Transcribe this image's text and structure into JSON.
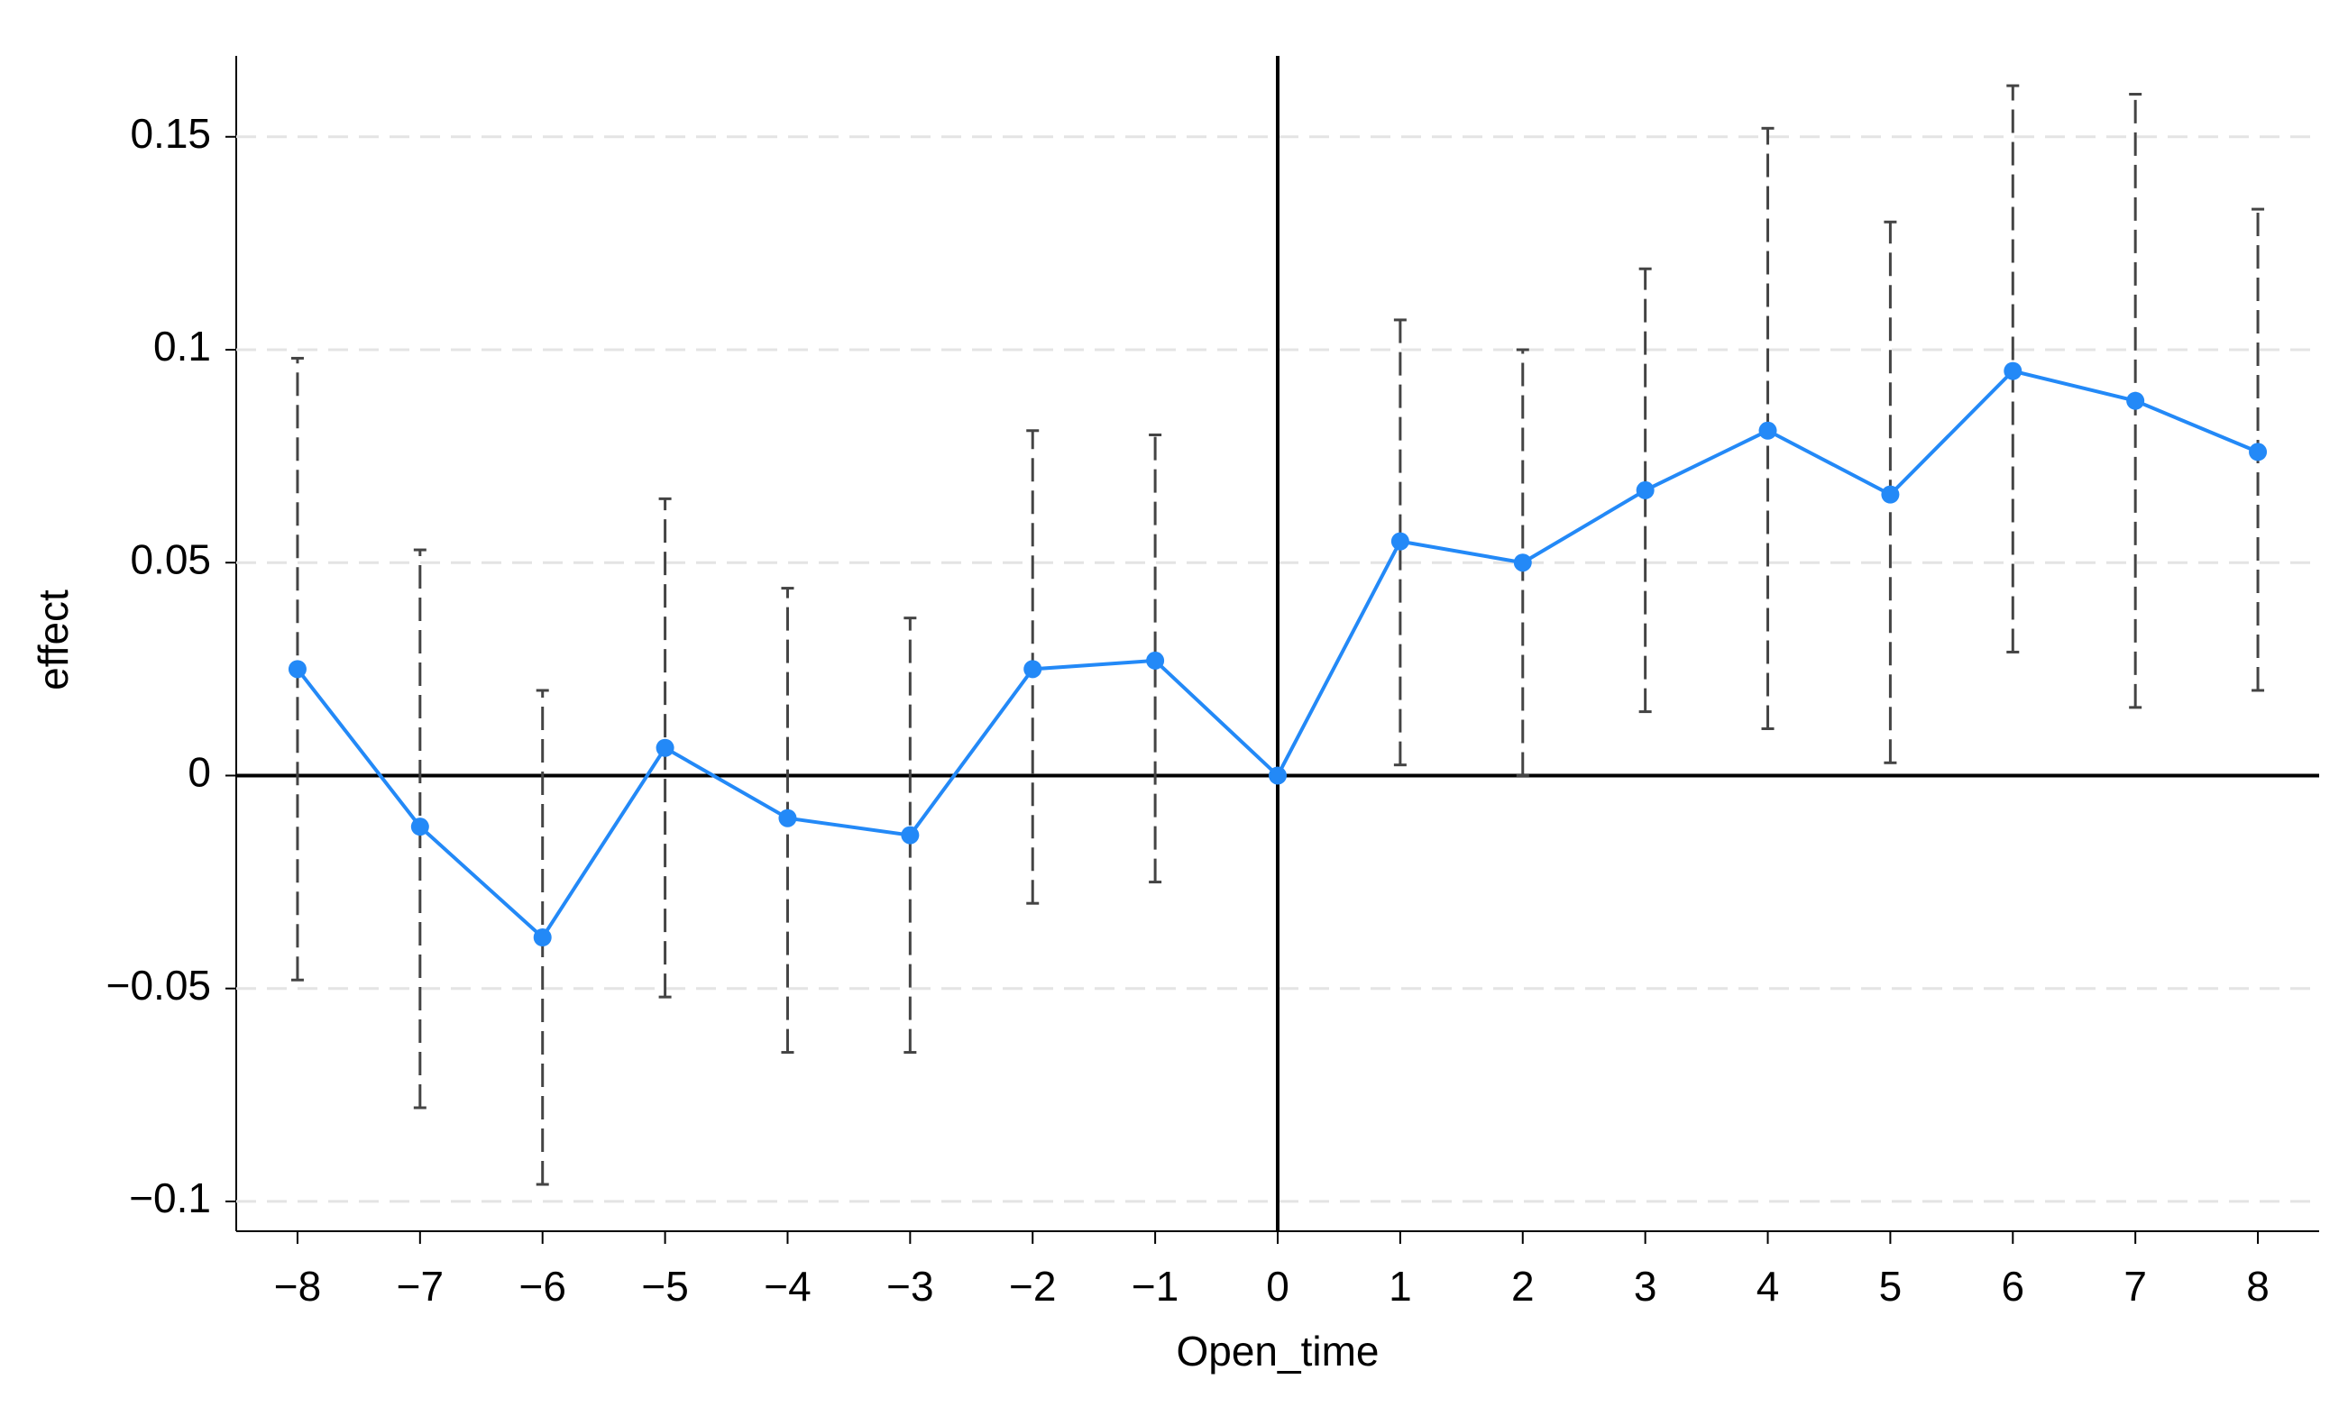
{
  "chart_data": {
    "type": "line",
    "x_label": "Open_time",
    "y_label": "effect",
    "x": [
      -8,
      -7,
      -6,
      -5,
      -4,
      -3,
      -2,
      -1,
      0,
      1,
      2,
      3,
      4,
      5,
      6,
      7,
      8
    ],
    "series": [
      {
        "color": "#2389f7",
        "values": [
          0.025,
          -0.012,
          -0.038,
          0.0065,
          -0.01,
          -0.014,
          0.025,
          0.027,
          0,
          0.055,
          0.05,
          0.067,
          0.081,
          0.066,
          0.095,
          0.088,
          0.076
        ],
        "ci_lower": [
          -0.048,
          -0.078,
          -0.096,
          -0.052,
          -0.065,
          -0.065,
          -0.03,
          -0.025,
          0,
          0.0025,
          0,
          0.015,
          0.011,
          0.003,
          0.029,
          0.016,
          0.02
        ],
        "ci_upper": [
          0.098,
          0.053,
          0.02,
          0.065,
          0.044,
          0.037,
          0.081,
          0.08,
          0,
          0.107,
          0.1,
          0.119,
          0.152,
          0.13,
          0.162,
          0.16,
          0.133
        ],
        "error_bar_color": "#444"
      }
    ],
    "xlim": [
      -8.5,
      8.5
    ],
    "xticks": [
      {
        "value": -8,
        "label": "−8"
      },
      {
        "value": -7,
        "label": "−7"
      },
      {
        "value": -6,
        "label": "−6"
      },
      {
        "value": -5,
        "label": "−5"
      },
      {
        "value": -4,
        "label": "−4"
      },
      {
        "value": -3,
        "label": "−3"
      },
      {
        "value": -2,
        "label": "−2"
      },
      {
        "value": -1,
        "label": "−1"
      },
      0,
      1,
      2,
      3,
      4,
      5,
      6,
      7,
      8
    ],
    "ylim": [
      -0.107,
      0.169
    ],
    "yticks": [
      {
        "value": -0.1,
        "label": "−0.1"
      },
      {
        "value": -0.05,
        "label": "−0.05"
      },
      0,
      0.05,
      0.1,
      0.15
    ],
    "grid": true,
    "xline": 0,
    "yline": 0
  }
}
